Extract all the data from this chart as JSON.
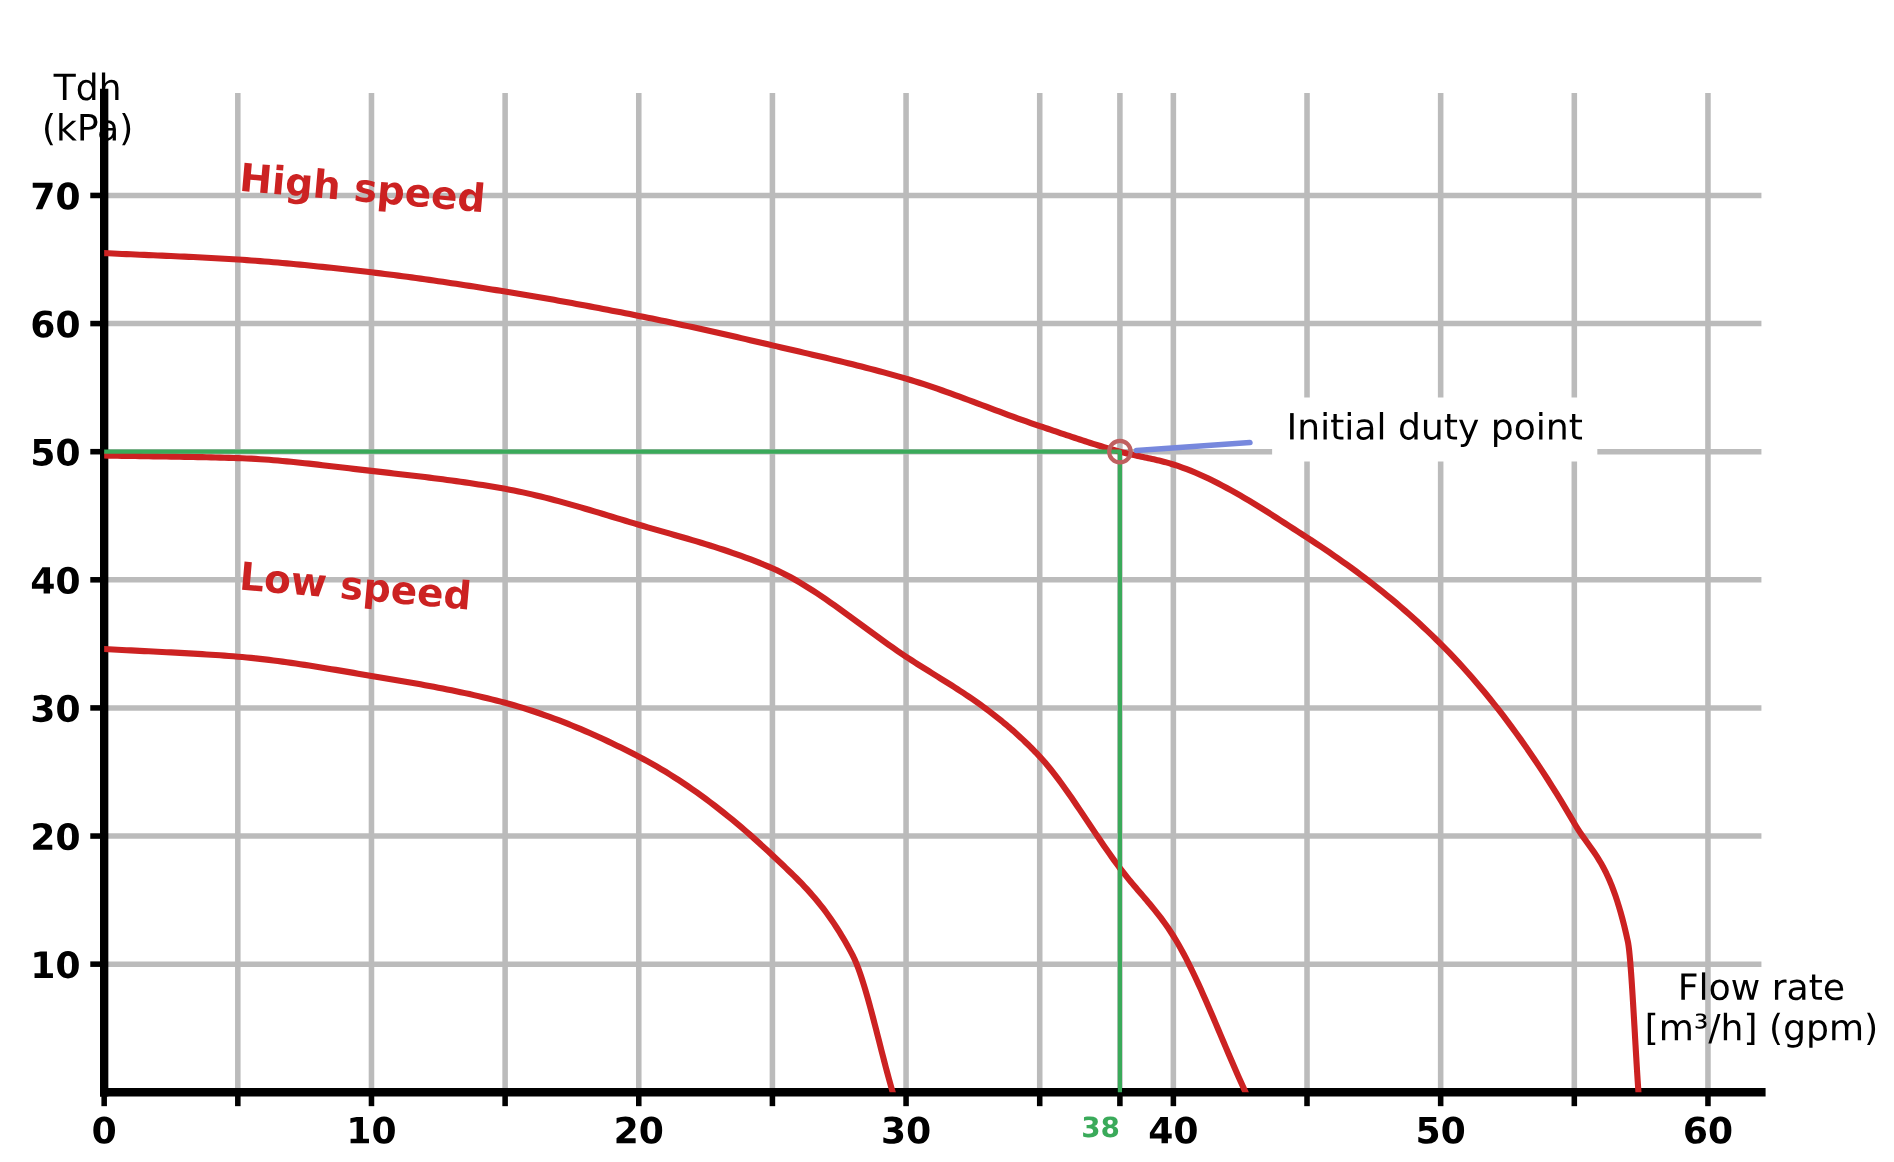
{
  "chart_data": {
    "type": "line",
    "ylabel": "Tdh\n(kPa)",
    "xlabel": "Flow rate\n[m³/h] (gpm)",
    "xlim": [
      0,
      62
    ],
    "ylim": [
      0,
      78
    ],
    "xticks": [
      0,
      {
        "value": 5,
        "label": null
      },
      10,
      {
        "value": 15,
        "label": null
      },
      20,
      {
        "value": 25,
        "label": null
      },
      30,
      {
        "value": 35,
        "label": null
      },
      38,
      40,
      {
        "value": 45,
        "label": null
      },
      50,
      {
        "value": 55,
        "label": null
      },
      60
    ],
    "yticks": [
      10,
      20,
      30,
      40,
      50,
      60,
      70
    ],
    "grid": true,
    "legend": false,
    "series": [
      {
        "name": "High speed",
        "color": "#cc2222",
        "x": [
          0,
          5,
          10,
          15,
          20,
          25,
          30,
          35,
          38,
          40,
          45,
          50,
          55,
          57,
          57.4
        ],
        "values": [
          65.5,
          65,
          64,
          62.5,
          60.6,
          58.3,
          55.7,
          52,
          50,
          49,
          43.3,
          35,
          21,
          11.8,
          0
        ]
      },
      {
        "color": "#cc2222",
        "x": [
          0,
          5,
          10,
          15,
          20,
          25,
          30,
          33.2,
          35,
          38,
          40,
          42.7
        ],
        "values": [
          49.7,
          49.5,
          48.5,
          47.1,
          44.3,
          40.9,
          34,
          29.6,
          26.2,
          17.5,
          12.2,
          0
        ]
      },
      {
        "name": "Low speed",
        "color": "#cc2222",
        "x": [
          0,
          5,
          10,
          15,
          20,
          25,
          28,
          29.5
        ],
        "values": [
          34.6,
          34,
          32.5,
          30.4,
          26.2,
          18.5,
          10.7,
          0
        ]
      },
      {
        "type": "line",
        "color": "#3aaa5a",
        "x": [
          0,
          38,
          38
        ],
        "values": [
          50,
          50,
          0
        ]
      },
      {
        "type": "scatter",
        "color": "#c06060",
        "marker": "circle",
        "x": [
          38
        ],
        "values": [
          50
        ]
      }
    ],
    "annotations": [
      {
        "text": "Initial duty point",
        "x": 38,
        "y": 50
      }
    ]
  }
}
